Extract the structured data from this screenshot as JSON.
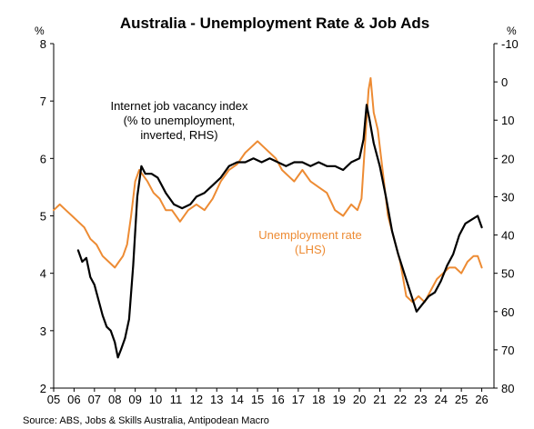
{
  "chart_data": {
    "type": "line",
    "title": "Australia - Unemployment Rate & Job Ads",
    "left_unit": "%",
    "right_unit": "%",
    "x_ticks": [
      "05",
      "06",
      "07",
      "08",
      "09",
      "10",
      "11",
      "12",
      "13",
      "14",
      "15",
      "16",
      "17",
      "18",
      "19",
      "20",
      "21",
      "22",
      "23",
      "24",
      "25",
      "26"
    ],
    "left_ticks": [
      "8",
      "7",
      "6",
      "5",
      "4",
      "3",
      "2"
    ],
    "right_ticks": [
      "-10",
      "0",
      "10",
      "20",
      "30",
      "40",
      "50",
      "60",
      "70",
      "80"
    ],
    "xlim": [
      2005,
      2026.6
    ],
    "ylim_left": [
      2,
      8
    ],
    "ylim_right_inverted": [
      -10,
      80
    ],
    "grid": false,
    "source": "Source: ABS, Jobs & Skills Australia, Antipodean Macro",
    "annotations": {
      "black_lines": [
        "Internet job vacancy index",
        "(% to unemployment,",
        "inverted, RHS)"
      ],
      "orange_lines": [
        "Unemployment rate",
        "(LHS)"
      ]
    },
    "series": [
      {
        "name": "Unemployment rate",
        "axis": "left",
        "color": "#ED8B33",
        "x": [
          2005.0,
          2005.3,
          2005.6,
          2005.9,
          2006.2,
          2006.5,
          2006.8,
          2007.1,
          2007.4,
          2007.7,
          2008.0,
          2008.2,
          2008.4,
          2008.6,
          2008.8,
          2009.0,
          2009.2,
          2009.4,
          2009.6,
          2009.9,
          2010.2,
          2010.5,
          2010.8,
          2011.2,
          2011.6,
          2012.0,
          2012.4,
          2012.8,
          2013.2,
          2013.6,
          2014.0,
          2014.4,
          2014.7,
          2015.0,
          2015.3,
          2015.6,
          2015.9,
          2016.2,
          2016.5,
          2016.8,
          2017.2,
          2017.6,
          2018.0,
          2018.4,
          2018.8,
          2019.2,
          2019.6,
          2019.9,
          2020.1,
          2020.3,
          2020.45,
          2020.55,
          2020.7,
          2020.9,
          2021.1,
          2021.4,
          2021.7,
          2022.0,
          2022.3,
          2022.6,
          2022.9,
          2023.2,
          2023.5,
          2023.8,
          2024.1,
          2024.4,
          2024.7,
          2025.0,
          2025.3,
          2025.6,
          2025.8,
          2026.0
        ],
        "values": [
          5.1,
          5.2,
          5.1,
          5.0,
          4.9,
          4.8,
          4.6,
          4.5,
          4.3,
          4.2,
          4.1,
          4.2,
          4.3,
          4.5,
          5.0,
          5.6,
          5.8,
          5.7,
          5.6,
          5.4,
          5.3,
          5.1,
          5.1,
          4.9,
          5.1,
          5.2,
          5.1,
          5.3,
          5.6,
          5.8,
          5.9,
          6.1,
          6.2,
          6.3,
          6.2,
          6.1,
          6.0,
          5.8,
          5.7,
          5.6,
          5.8,
          5.6,
          5.5,
          5.4,
          5.1,
          5.0,
          5.2,
          5.1,
          5.3,
          6.4,
          7.2,
          7.4,
          6.8,
          6.5,
          5.9,
          5.0,
          4.6,
          4.2,
          3.6,
          3.5,
          3.6,
          3.5,
          3.7,
          3.9,
          4.0,
          4.1,
          4.1,
          4.0,
          4.2,
          4.3,
          4.3,
          4.1
        ]
      },
      {
        "name": "Internet job vacancy index",
        "axis": "right",
        "color": "#000000",
        "x": [
          2006.2,
          2006.4,
          2006.6,
          2006.8,
          2007.0,
          2007.2,
          2007.4,
          2007.6,
          2007.8,
          2008.0,
          2008.15,
          2008.3,
          2008.5,
          2008.7,
          2008.9,
          2009.1,
          2009.3,
          2009.5,
          2009.8,
          2010.1,
          2010.5,
          2010.9,
          2011.3,
          2011.7,
          2012.0,
          2012.4,
          2012.8,
          2013.2,
          2013.6,
          2014.0,
          2014.4,
          2014.8,
          2015.2,
          2015.6,
          2016.0,
          2016.4,
          2016.8,
          2017.2,
          2017.6,
          2018.0,
          2018.4,
          2018.8,
          2019.2,
          2019.6,
          2020.0,
          2020.2,
          2020.35,
          2020.5,
          2020.7,
          2021.0,
          2021.3,
          2021.6,
          2021.9,
          2022.2,
          2022.5,
          2022.8,
          2023.1,
          2023.4,
          2023.7,
          2024.0,
          2024.3,
          2024.6,
          2024.9,
          2025.2,
          2025.5,
          2025.8,
          2026.0
        ],
        "values": [
          44,
          47,
          46,
          51,
          53,
          57,
          61,
          64,
          65,
          68,
          72,
          70,
          67,
          62,
          48,
          30,
          22,
          24,
          24,
          25,
          29,
          32,
          33,
          32,
          30,
          29,
          27,
          25,
          22,
          21,
          21,
          20,
          21,
          20,
          21,
          22,
          21,
          21,
          22,
          21,
          22,
          22,
          23,
          21,
          20,
          15,
          6,
          10,
          16,
          22,
          30,
          39,
          45,
          50,
          55,
          60,
          58,
          56,
          55,
          52,
          48,
          45,
          40,
          37,
          36,
          35,
          38
        ]
      }
    ]
  }
}
